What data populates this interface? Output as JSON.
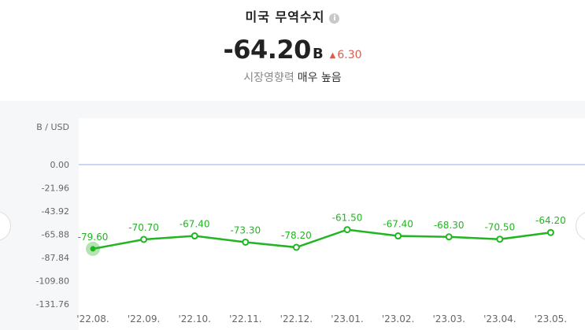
{
  "header": {
    "title": "미국 무역수지",
    "info_icon": "info-icon",
    "value": "-64.20",
    "unit": "B",
    "change": "6.30",
    "change_icon": "triangle-up-icon",
    "change_color": "#e05a4c",
    "impact_label": "시장영향력",
    "impact_value": "매우 높음"
  },
  "chart_data": {
    "type": "line",
    "ylabel": "B / USD",
    "categories": [
      "'22.08.",
      "'22.09.",
      "'22.10.",
      "'22.11.",
      "'22.12.",
      "'23.01.",
      "'23.02.",
      "'23.03.",
      "'23.04.",
      "'23.05."
    ],
    "values": [
      -79.6,
      -70.7,
      -67.4,
      -73.3,
      -78.2,
      -61.5,
      -67.4,
      -68.3,
      -70.5,
      -64.2
    ],
    "value_labels": [
      "-79.60",
      "-70.70",
      "-67.40",
      "-73.30",
      "-78.20",
      "-61.50",
      "-67.40",
      "-68.30",
      "-70.50",
      "-64.20"
    ],
    "yticks": [
      "0.00",
      "-21.96",
      "-43.92",
      "-65.88",
      "-87.84",
      "-109.80",
      "-131.76"
    ],
    "ylim": [
      -131.76,
      0
    ],
    "line_color": "#22b522",
    "zero_line_color": "#b8c8f0",
    "highlight_index": 0
  }
}
